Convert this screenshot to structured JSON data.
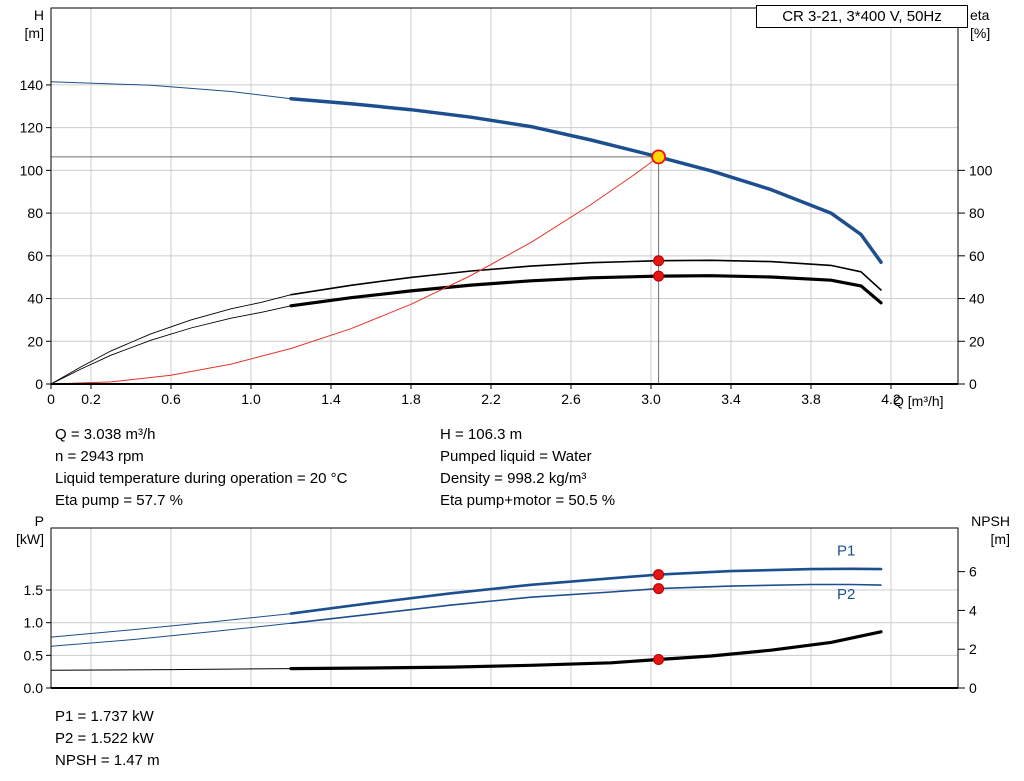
{
  "colors": {
    "blue": "#1d4f8f",
    "black": "#000000",
    "red": "#e63329",
    "dot_red": "#e81313",
    "duty_yellow": "#ffd400",
    "grid": "#cccccc",
    "crosshair": "#707070"
  },
  "title_box": "CR 3-21, 3*400 V, 50Hz",
  "info_top_left": [
    "Q = 3.038 m³/h",
    "n = 2943 rpm",
    "Liquid temperature during operation = 20 °C",
    "Eta pump = 57.7 %"
  ],
  "info_top_right": [
    "H = 106.3 m",
    "Pumped liquid = Water",
    "Density = 998.2 kg/m³",
    "Eta pump+motor = 50.5 %"
  ],
  "info_bottom": [
    "P1 = 1.737 kW",
    "P2 = 1.522 kW",
    "NPSH = 1.47 m"
  ],
  "chart_data": [
    {
      "type": "line",
      "name": "qh-eta-chart",
      "title": "CR 3-21, 3*400 V, 50Hz",
      "x_axis": {
        "label": "Q [m³/h]",
        "range": [
          0,
          4.535
        ],
        "show_labels": true,
        "ticks": [
          {
            "v": 0,
            "t": "0"
          },
          {
            "v": 0.2,
            "t": "0.2"
          },
          {
            "v": 0.6,
            "t": "0.6"
          },
          {
            "v": 1.0,
            "t": "1.0"
          },
          {
            "v": 1.4,
            "t": "1.4"
          },
          {
            "v": 1.8,
            "t": "1.8"
          },
          {
            "v": 2.2,
            "t": "2.2"
          },
          {
            "v": 2.6,
            "t": "2.6"
          },
          {
            "v": 3.0,
            "t": "3.0"
          },
          {
            "v": 3.4,
            "t": "3.4"
          },
          {
            "v": 3.8,
            "t": "3.8"
          },
          {
            "v": 4.2,
            "t": "4.2"
          }
        ]
      },
      "y_left": {
        "label": "H",
        "unit": "[m]",
        "range": [
          0,
          176
        ],
        "ticks": [
          {
            "v": 0,
            "t": "0"
          },
          {
            "v": 20,
            "t": "20"
          },
          {
            "v": 40,
            "t": "40"
          },
          {
            "v": 60,
            "t": "60"
          },
          {
            "v": 80,
            "t": "80"
          },
          {
            "v": 100,
            "t": "100"
          },
          {
            "v": 120,
            "t": "120"
          },
          {
            "v": 140,
            "t": "140"
          }
        ]
      },
      "y_right": {
        "label": "eta",
        "unit": "[%]",
        "range": [
          0,
          176
        ],
        "ticks": [
          {
            "v": 0,
            "t": "0"
          },
          {
            "v": 20,
            "t": "20"
          },
          {
            "v": 40,
            "t": "40"
          },
          {
            "v": 60,
            "t": "60"
          },
          {
            "v": 80,
            "t": "80"
          },
          {
            "v": 100,
            "t": "100"
          }
        ]
      },
      "series": [
        {
          "name": "head-curve-lowflow",
          "axis": "left",
          "color": "#1d4f8f",
          "width": 1,
          "points": [
            [
              0,
              141.5
            ],
            [
              0.5,
              139.8
            ],
            [
              0.9,
              136.9
            ],
            [
              1.2,
              133.5
            ]
          ]
        },
        {
          "name": "head-curve",
          "axis": "left",
          "color": "#1d4f8f",
          "width": 3.5,
          "points": [
            [
              1.2,
              133.5
            ],
            [
              1.5,
              131.2
            ],
            [
              1.8,
              128.4
            ],
            [
              2.1,
              124.9
            ],
            [
              2.4,
              120.5
            ],
            [
              2.7,
              114.2
            ],
            [
              3.038,
              106.3
            ],
            [
              3.3,
              99.8
            ],
            [
              3.6,
              91
            ],
            [
              3.9,
              80
            ],
            [
              4.05,
              70
            ],
            [
              4.15,
              57
            ]
          ]
        },
        {
          "name": "eta-pump-lowflow",
          "axis": "right",
          "color": "#000000",
          "width": 0.9,
          "points": [
            [
              0,
              0
            ],
            [
              0.15,
              8
            ],
            [
              0.3,
              15.5
            ],
            [
              0.5,
              23.5
            ],
            [
              0.7,
              30
            ],
            [
              0.9,
              35.2
            ],
            [
              1.05,
              38.2
            ],
            [
              1.2,
              41.8
            ]
          ]
        },
        {
          "name": "eta-pump-curve",
          "axis": "right",
          "color": "#000000",
          "width": 1.6,
          "points": [
            [
              1.2,
              41.8
            ],
            [
              1.5,
              46.2
            ],
            [
              1.8,
              49.9
            ],
            [
              2.1,
              52.9
            ],
            [
              2.4,
              55.2
            ],
            [
              2.7,
              56.8
            ],
            [
              3.038,
              57.7
            ],
            [
              3.3,
              57.9
            ],
            [
              3.6,
              57.3
            ],
            [
              3.9,
              55.5
            ],
            [
              4.05,
              52.5
            ],
            [
              4.15,
              44
            ]
          ]
        },
        {
          "name": "eta-pump-motor-lowflow",
          "axis": "right",
          "color": "#000000",
          "width": 0.9,
          "points": [
            [
              0,
              0
            ],
            [
              0.15,
              7
            ],
            [
              0.3,
              13.5
            ],
            [
              0.5,
              20.5
            ],
            [
              0.7,
              26.2
            ],
            [
              0.9,
              30.8
            ],
            [
              1.05,
              33.5
            ],
            [
              1.2,
              36.6
            ]
          ]
        },
        {
          "name": "eta-pump-motor-curve",
          "axis": "right",
          "color": "#000000",
          "width": 3.2,
          "points": [
            [
              1.2,
              36.6
            ],
            [
              1.5,
              40.4
            ],
            [
              1.8,
              43.6
            ],
            [
              2.1,
              46.3
            ],
            [
              2.4,
              48.3
            ],
            [
              2.7,
              49.7
            ],
            [
              3.038,
              50.5
            ],
            [
              3.3,
              50.7
            ],
            [
              3.6,
              50.1
            ],
            [
              3.9,
              48.6
            ],
            [
              4.05,
              45.9
            ],
            [
              4.15,
              38
            ]
          ]
        },
        {
          "name": "duty-parabola",
          "axis": "left",
          "color": "#e63329",
          "width": 1,
          "points": [
            [
              0,
              0
            ],
            [
              0.3,
              1
            ],
            [
              0.6,
              4.1
            ],
            [
              0.9,
              9.3
            ],
            [
              1.2,
              16.6
            ],
            [
              1.5,
              25.9
            ],
            [
              1.8,
              37.3
            ],
            [
              2.1,
              50.8
            ],
            [
              2.4,
              66.3
            ],
            [
              2.7,
              84
            ],
            [
              2.9,
              96.9
            ],
            [
              3.038,
              106.3
            ]
          ]
        }
      ],
      "markers": [
        {
          "type": "crosshair",
          "name": "duty-crosshair",
          "axis": "left",
          "q": 3.038,
          "v": 106.3,
          "color": "#707070"
        },
        {
          "type": "dot",
          "name": "eta-pump-point",
          "axis": "right",
          "q": 3.038,
          "v": 57.7,
          "color": "#e81313",
          "r": 5
        },
        {
          "type": "dot",
          "name": "eta-pump-motor-point",
          "axis": "right",
          "q": 3.038,
          "v": 50.5,
          "color": "#e81313",
          "r": 5
        },
        {
          "type": "duty",
          "name": "duty-point",
          "axis": "left",
          "q": 3.038,
          "v": 106.3,
          "fill": "#ffd400",
          "stroke": "#e81313",
          "r": 6.5
        }
      ],
      "annotations": [],
      "operating_point": {
        "Q": 3.038,
        "H": 106.3,
        "eta_pump": 57.7,
        "eta_pump_motor": 50.5
      }
    },
    {
      "type": "line",
      "name": "power-npsh-chart",
      "title": "",
      "x_axis": {
        "label": "",
        "range": [
          0,
          4.535
        ],
        "show_labels": false,
        "ticks": [
          {
            "v": 0,
            "t": "0"
          },
          {
            "v": 0.2,
            "t": "0.2"
          },
          {
            "v": 0.6,
            "t": "0.6"
          },
          {
            "v": 1.0,
            "t": "1.0"
          },
          {
            "v": 1.4,
            "t": "1.4"
          },
          {
            "v": 1.8,
            "t": "1.8"
          },
          {
            "v": 2.2,
            "t": "2.2"
          },
          {
            "v": 2.6,
            "t": "2.6"
          },
          {
            "v": 3.0,
            "t": "3.0"
          },
          {
            "v": 3.4,
            "t": "3.4"
          },
          {
            "v": 3.8,
            "t": "3.8"
          },
          {
            "v": 4.2,
            "t": "4.2"
          }
        ]
      },
      "y_left": {
        "label": "P",
        "unit": "[kW]",
        "range": [
          0,
          2.45
        ],
        "ticks": [
          {
            "v": 0,
            "t": "0.0"
          },
          {
            "v": 0.5,
            "t": "0.5"
          },
          {
            "v": 1.0,
            "t": "1.0"
          },
          {
            "v": 1.5,
            "t": "1.5"
          }
        ]
      },
      "y_right": {
        "label": "NPSH",
        "unit": "[m]",
        "range": [
          0,
          8.25
        ],
        "ticks": [
          {
            "v": 0,
            "t": "0"
          },
          {
            "v": 2,
            "t": "2"
          },
          {
            "v": 4,
            "t": "4"
          },
          {
            "v": 6,
            "t": "6"
          }
        ]
      },
      "series": [
        {
          "name": "p1-curve-lowflow",
          "axis": "left",
          "color": "#1d4f8f",
          "width": 1,
          "points": [
            [
              0,
              0.78
            ],
            [
              0.4,
              0.89
            ],
            [
              0.8,
              1.01
            ],
            [
              1.2,
              1.14
            ]
          ]
        },
        {
          "name": "p1-curve",
          "axis": "left",
          "color": "#1d4f8f",
          "width": 2.6,
          "points": [
            [
              1.2,
              1.14
            ],
            [
              1.6,
              1.3
            ],
            [
              2.0,
              1.45
            ],
            [
              2.4,
              1.58
            ],
            [
              2.8,
              1.68
            ],
            [
              3.038,
              1.737
            ],
            [
              3.4,
              1.79
            ],
            [
              3.8,
              1.82
            ],
            [
              4.0,
              1.825
            ],
            [
              4.15,
              1.82
            ]
          ]
        },
        {
          "name": "p2-curve-lowflow",
          "axis": "left",
          "color": "#1d4f8f",
          "width": 1,
          "points": [
            [
              0,
              0.64
            ],
            [
              0.4,
              0.74
            ],
            [
              0.8,
              0.86
            ],
            [
              1.2,
              0.99
            ]
          ]
        },
        {
          "name": "p2-curve",
          "axis": "left",
          "color": "#1d4f8f",
          "width": 1.6,
          "points": [
            [
              1.2,
              0.99
            ],
            [
              1.6,
              1.13
            ],
            [
              2.0,
              1.27
            ],
            [
              2.4,
              1.39
            ],
            [
              2.8,
              1.47
            ],
            [
              3.038,
              1.522
            ],
            [
              3.4,
              1.56
            ],
            [
              3.8,
              1.585
            ],
            [
              4.0,
              1.585
            ],
            [
              4.15,
              1.575
            ]
          ]
        },
        {
          "name": "npsh-curve-lowflow",
          "axis": "right",
          "color": "#000000",
          "width": 1,
          "points": [
            [
              0,
              0.92
            ],
            [
              0.6,
              0.95
            ],
            [
              1.2,
              1.0
            ]
          ]
        },
        {
          "name": "npsh-curve",
          "axis": "right",
          "color": "#000000",
          "width": 3.2,
          "points": [
            [
              1.2,
              1.0
            ],
            [
              1.6,
              1.03
            ],
            [
              2.0,
              1.08
            ],
            [
              2.4,
              1.17
            ],
            [
              2.8,
              1.3
            ],
            [
              3.038,
              1.47
            ],
            [
              3.3,
              1.65
            ],
            [
              3.6,
              1.95
            ],
            [
              3.9,
              2.35
            ],
            [
              4.15,
              2.9
            ]
          ]
        }
      ],
      "markers": [
        {
          "type": "dot",
          "name": "p1-point",
          "axis": "left",
          "q": 3.038,
          "v": 1.737,
          "color": "#e81313",
          "r": 5
        },
        {
          "type": "dot",
          "name": "p2-point",
          "axis": "left",
          "q": 3.038,
          "v": 1.522,
          "color": "#e81313",
          "r": 5
        },
        {
          "type": "dot",
          "name": "npsh-point",
          "axis": "right",
          "q": 3.038,
          "v": 1.47,
          "color": "#e81313",
          "r": 5
        }
      ],
      "annotations": [
        {
          "text": "P1",
          "q": 3.93,
          "v": 2.03,
          "axis": "left",
          "color": "#1d4f8f"
        },
        {
          "text": "P2",
          "q": 3.93,
          "v": 1.36,
          "axis": "left",
          "color": "#1d4f8f"
        }
      ],
      "operating_point": {
        "Q": 3.038,
        "P1_kW": 1.737,
        "P2_kW": 1.522,
        "NPSH_m": 1.47
      }
    }
  ]
}
